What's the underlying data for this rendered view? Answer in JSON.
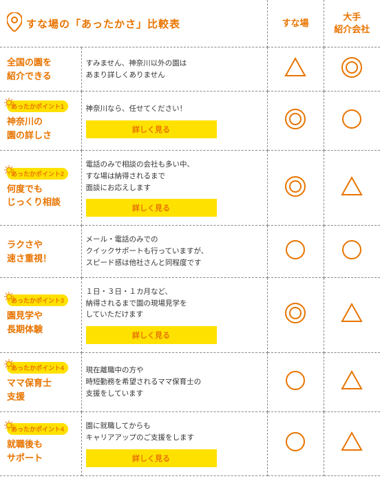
{
  "header": {
    "title": "すな場の「あったかさ」比較表",
    "col_a": "すな場",
    "col_b": "大手\n紹介会社"
  },
  "button_label": "詳しく見る",
  "colors": {
    "orange": "#e87400",
    "yellow": "#ffe100"
  },
  "mark_size": 34,
  "rows": [
    {
      "badge": null,
      "title": "全国の園を\n紹介できる",
      "desc": "すみません、神奈川以外の園は\nあまり詳しくありません",
      "button": false,
      "a": "triangle",
      "b": "double"
    },
    {
      "badge": "あったかポイント1",
      "title": "神奈川の\n園の詳しさ",
      "desc": "神奈川なら、任せてください！",
      "button": true,
      "a": "double",
      "b": "circle"
    },
    {
      "badge": "あったかポイント2",
      "title": "何度でも\nじっくり相談",
      "desc": "電話のみで相談の会社も多い中、\nすな場は納得されるまで\n面談にお応えします",
      "button": true,
      "a": "double",
      "b": "triangle"
    },
    {
      "badge": null,
      "title": "ラクさや\n速さ重視！",
      "desc": "メール・電話のみでの\nクイックサポートも行っていますが、\nスピード感は他社さんと同程度です",
      "button": false,
      "a": "circle",
      "b": "circle"
    },
    {
      "badge": "あったかポイント3",
      "title": "園見学や\n長期体験",
      "desc": "１日・３日・１カ月など、\n納得されるまで園の現場見学を\nしていただけます",
      "button": true,
      "a": "double",
      "b": "triangle"
    },
    {
      "badge": "あったかポイント4",
      "title": "ママ保育士\n支援",
      "desc": "現在離職中の方や\n時短勤務を希望されるママ保育士の\n支援をしています",
      "button": false,
      "a": "circle",
      "b": "triangle"
    },
    {
      "badge": "あったかポイント4",
      "title": "就職後も\nサポート",
      "desc": "園に就職してからも\nキャリアアップのご支援をします",
      "button": true,
      "a": "circle",
      "b": "triangle"
    }
  ]
}
